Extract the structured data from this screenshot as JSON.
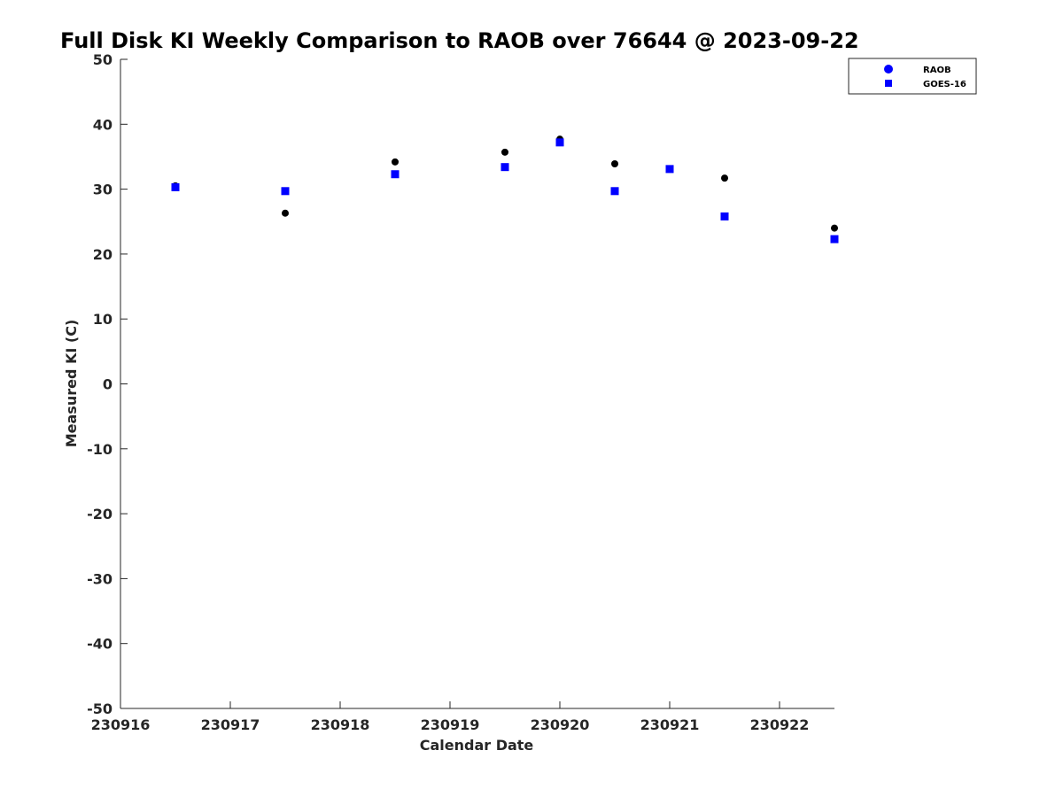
{
  "chart_data": {
    "type": "scatter",
    "title": "Full Disk KI Weekly Comparison to RAOB over 76644 @ 2023-09-22",
    "xlabel": "Calendar Date",
    "ylabel": "Measured KI (C)",
    "xlim": [
      230916,
      230922.5
    ],
    "ylim": [
      -50,
      50
    ],
    "x_ticks": [
      230916,
      230917,
      230918,
      230919,
      230920,
      230921,
      230922
    ],
    "x_tick_labels": [
      "230916",
      "230917",
      "230918",
      "230919",
      "230920",
      "230921",
      "230922"
    ],
    "y_ticks": [
      50,
      40,
      30,
      20,
      10,
      0,
      -10,
      -20,
      -30,
      -40,
      -50
    ],
    "y_tick_labels": [
      "50",
      "40",
      "30",
      "20",
      "10",
      "0",
      "-10",
      "-20",
      "-30",
      "-40",
      "-50"
    ],
    "grid": false,
    "legend_position": "top-right",
    "series": [
      {
        "name": "RAOB",
        "marker": "circle",
        "color": "#000000",
        "legend_color": "#0000ff",
        "points": [
          {
            "x": 230916.5,
            "y": 30.5
          },
          {
            "x": 230917.5,
            "y": 26.3
          },
          {
            "x": 230918.5,
            "y": 34.2
          },
          {
            "x": 230919.5,
            "y": 35.7
          },
          {
            "x": 230920.0,
            "y": 37.7
          },
          {
            "x": 230920.5,
            "y": 33.9
          },
          {
            "x": 230921.0,
            "y": 33.1
          },
          {
            "x": 230921.5,
            "y": 31.7
          },
          {
            "x": 230922.5,
            "y": 24.0
          }
        ]
      },
      {
        "name": "GOES-16",
        "marker": "square",
        "color": "#0000ff",
        "legend_color": "#0000ff",
        "points": [
          {
            "x": 230916.5,
            "y": 30.3
          },
          {
            "x": 230917.5,
            "y": 29.7
          },
          {
            "x": 230918.5,
            "y": 32.3
          },
          {
            "x": 230919.5,
            "y": 33.4
          },
          {
            "x": 230920.0,
            "y": 37.2
          },
          {
            "x": 230920.5,
            "y": 29.7
          },
          {
            "x": 230921.0,
            "y": 33.1
          },
          {
            "x": 230921.5,
            "y": 25.8
          },
          {
            "x": 230922.5,
            "y": 22.3
          }
        ]
      }
    ]
  }
}
